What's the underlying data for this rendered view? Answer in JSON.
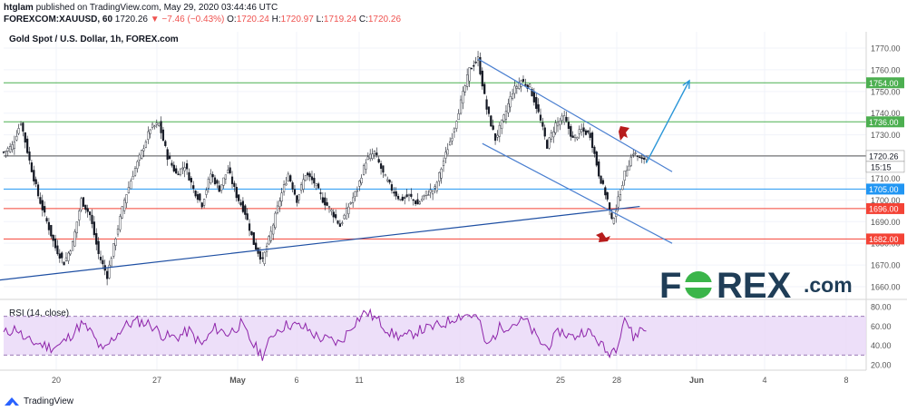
{
  "header": {
    "author": "htglam",
    "published": "published on TradingView.com, May 29, 2020 03:44:46 UTC",
    "symbol": "FOREXCOM:XAUUSD, 60",
    "last": "1720.26",
    "change": "▼ −7.46 (−0.43%)",
    "open_label": "O:",
    "open": "1720.24",
    "high_label": "H:",
    "high": "1720.97",
    "low_label": "L:",
    "low": "1719.24",
    "close_label": "C:",
    "close": "1720.26"
  },
  "chart_title": "Gold Spot / U.S. Dollar, 1h, FOREX.com",
  "logo": {
    "brand": "FOREX",
    "suffix": ".com"
  },
  "footer": {
    "brand": "TradingView"
  },
  "rsi": {
    "label": "RSI (14, close)",
    "ticks": [
      "80.00",
      "60.00",
      "40.00",
      "20.00"
    ]
  },
  "chart_data": {
    "type": "candlestick",
    "title": "Gold Spot / U.S. Dollar, 1h, FOREX.com",
    "xlabel": "",
    "ylabel": "",
    "ylim": [
      1650,
      1775
    ],
    "y_ticks": [
      1660,
      1670,
      1680,
      1690,
      1700,
      1710,
      1720,
      1730,
      1740,
      1750,
      1760,
      1770
    ],
    "y_tick_labels": [
      "1660.00",
      "1670.00",
      "1680.00",
      "1690.00",
      "1700.00",
      "1710.00",
      "1720.00",
      "1730.00",
      "1740.00",
      "1750.00",
      "1760.00",
      "1770.00"
    ],
    "x_ticks": [
      "20",
      "27",
      "May",
      "6",
      "11",
      "18",
      "25",
      "28",
      "Jun",
      "4",
      "8"
    ],
    "close_path": [
      [
        0,
        1722
      ],
      [
        4,
        1725
      ],
      [
        8,
        1736
      ],
      [
        12,
        1718
      ],
      [
        16,
        1702
      ],
      [
        20,
        1690
      ],
      [
        24,
        1678
      ],
      [
        28,
        1671
      ],
      [
        32,
        1680
      ],
      [
        36,
        1700
      ],
      [
        40,
        1693
      ],
      [
        44,
        1675
      ],
      [
        48,
        1665
      ],
      [
        52,
        1683
      ],
      [
        56,
        1700
      ],
      [
        60,
        1712
      ],
      [
        64,
        1722
      ],
      [
        68,
        1733
      ],
      [
        72,
        1735
      ],
      [
        76,
        1720
      ],
      [
        80,
        1712
      ],
      [
        84,
        1716
      ],
      [
        88,
        1705
      ],
      [
        92,
        1698
      ],
      [
        96,
        1712
      ],
      [
        100,
        1705
      ],
      [
        104,
        1714
      ],
      [
        108,
        1702
      ],
      [
        112,
        1694
      ],
      [
        116,
        1680
      ],
      [
        120,
        1672
      ],
      [
        124,
        1685
      ],
      [
        128,
        1700
      ],
      [
        132,
        1712
      ],
      [
        136,
        1700
      ],
      [
        140,
        1712
      ],
      [
        144,
        1708
      ],
      [
        148,
        1700
      ],
      [
        152,
        1695
      ],
      [
        156,
        1688
      ],
      [
        160,
        1697
      ],
      [
        164,
        1705
      ],
      [
        168,
        1718
      ],
      [
        172,
        1722
      ],
      [
        176,
        1712
      ],
      [
        180,
        1705
      ],
      [
        184,
        1700
      ],
      [
        188,
        1702
      ],
      [
        192,
        1698
      ],
      [
        196,
        1703
      ],
      [
        200,
        1705
      ],
      [
        204,
        1718
      ],
      [
        208,
        1730
      ],
      [
        212,
        1745
      ],
      [
        216,
        1760
      ],
      [
        220,
        1765
      ],
      [
        224,
        1742
      ],
      [
        228,
        1728
      ],
      [
        232,
        1738
      ],
      [
        236,
        1750
      ],
      [
        240,
        1755
      ],
      [
        244,
        1752
      ],
      [
        248,
        1740
      ],
      [
        252,
        1725
      ],
      [
        256,
        1735
      ],
      [
        260,
        1738
      ],
      [
        264,
        1728
      ],
      [
        268,
        1732
      ],
      [
        272,
        1730
      ],
      [
        276,
        1712
      ],
      [
        280,
        1700
      ],
      [
        282,
        1690
      ],
      [
        284,
        1696
      ],
      [
        288,
        1712
      ],
      [
        292,
        1722
      ],
      [
        296,
        1718
      ],
      [
        298,
        1720.26
      ]
    ],
    "trend_lines": [
      {
        "name": "lower-support-trendline",
        "color": "#1e4fa3",
        "from": [
          -20,
          1661
        ],
        "to": [
          295,
          1697
        ]
      },
      {
        "name": "channel-upper-line",
        "color": "#4a7fd0",
        "from": [
          220,
          1765
        ],
        "to": [
          310,
          1713
        ]
      },
      {
        "name": "channel-lower-line",
        "color": "#4a7fd0",
        "from": [
          222,
          1726
        ],
        "to": [
          310,
          1680
        ]
      }
    ],
    "projection_arrow": {
      "color": "#2a96d8",
      "from": [
        298,
        1717
      ],
      "to": [
        318,
        1755
      ]
    },
    "horizontal_levels": [
      {
        "value": 1754.0,
        "label": "1754.00",
        "color": "#4caf50"
      },
      {
        "value": 1736.0,
        "label": "1736.00",
        "color": "#4caf50"
      },
      {
        "value": 1720.26,
        "label": "1720.26",
        "color": "#555555"
      },
      {
        "value": 1705.0,
        "label": "1705.00",
        "color": "#2196f3"
      },
      {
        "value": 1696.0,
        "label": "1696.00",
        "color": "#f44336"
      },
      {
        "value": 1682.0,
        "label": "1682.00",
        "color": "#f44336"
      }
    ],
    "countdown": "15:15",
    "rsi_ylim": [
      20,
      90
    ],
    "rsi_band": [
      30,
      70
    ],
    "rsi_path": [
      [
        0,
        52
      ],
      [
        6,
        58
      ],
      [
        10,
        45
      ],
      [
        16,
        42
      ],
      [
        22,
        38
      ],
      [
        26,
        40
      ],
      [
        30,
        48
      ],
      [
        36,
        62
      ],
      [
        40,
        55
      ],
      [
        46,
        33
      ],
      [
        50,
        45
      ],
      [
        56,
        60
      ],
      [
        62,
        65
      ],
      [
        68,
        62
      ],
      [
        74,
        50
      ],
      [
        80,
        48
      ],
      [
        86,
        55
      ],
      [
        92,
        40
      ],
      [
        98,
        58
      ],
      [
        104,
        52
      ],
      [
        110,
        62
      ],
      [
        116,
        40
      ],
      [
        120,
        30
      ],
      [
        126,
        55
      ],
      [
        132,
        62
      ],
      [
        140,
        58
      ],
      [
        146,
        48
      ],
      [
        152,
        45
      ],
      [
        156,
        42
      ],
      [
        162,
        62
      ],
      [
        168,
        75
      ],
      [
        174,
        65
      ],
      [
        180,
        52
      ],
      [
        186,
        48
      ],
      [
        192,
        55
      ],
      [
        198,
        58
      ],
      [
        204,
        62
      ],
      [
        210,
        70
      ],
      [
        216,
        72
      ],
      [
        220,
        68
      ],
      [
        224,
        38
      ],
      [
        230,
        58
      ],
      [
        236,
        62
      ],
      [
        242,
        66
      ],
      [
        248,
        45
      ],
      [
        252,
        38
      ],
      [
        258,
        55
      ],
      [
        264,
        48
      ],
      [
        270,
        56
      ],
      [
        276,
        44
      ],
      [
        280,
        32
      ],
      [
        284,
        38
      ],
      [
        288,
        70
      ],
      [
        292,
        48
      ],
      [
        296,
        58
      ],
      [
        298,
        55
      ]
    ],
    "total_bars": 400
  }
}
